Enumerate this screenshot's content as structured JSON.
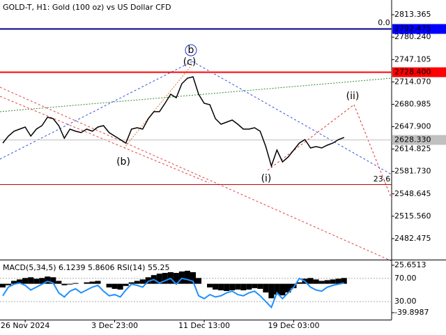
{
  "chart_data": [
    {
      "type": "line",
      "title": "GOLD-T, H1:  Gold (100 oz) vs US Dollar CFD",
      "color": "#000000",
      "categories": [
        null,
        null,
        null,
        null,
        "26 Nov 2024",
        null,
        null,
        null,
        null,
        null,
        null,
        null,
        null,
        null,
        null,
        null,
        null,
        null,
        null,
        null,
        "3 Dec 23:00",
        null,
        null,
        null,
        null,
        null,
        null,
        null,
        null,
        null,
        null,
        null,
        null,
        null,
        null,
        null,
        "11 Dec 13:00",
        null,
        null,
        null,
        null,
        null,
        null,
        null,
        null,
        null,
        null,
        null,
        null,
        null,
        null,
        null,
        "19 Dec 03:00",
        null,
        null,
        null,
        null,
        null,
        null,
        null,
        null,
        null,
        null,
        null,
        null,
        null,
        null,
        null,
        null,
        null
      ],
      "values": [
        2623.7,
        2634.0,
        2641.2,
        2644.3,
        2647.4,
        2634.0,
        2644.3,
        2649.5,
        2661.8,
        2659.8,
        2649.5,
        2630.9,
        2644.3,
        2641.2,
        2639.2,
        2644.3,
        2641.2,
        2647.4,
        2649.5,
        2639.2,
        2634.0,
        2628.8,
        2623.7,
        2644.3,
        2646.4,
        2644.3,
        2659.8,
        2670.1,
        2670.1,
        2682.5,
        2695.9,
        2690.7,
        2711.3,
        2719.6,
        2721.7,
        2695.9,
        2682.5,
        2680.4,
        2659.8,
        2651.5,
        2654.6,
        2657.7,
        2651.5,
        2644.3,
        2644.3,
        2646.4,
        2641.2,
        2618.5,
        2589.7,
        2613.4,
        2595.8,
        2603.1,
        2613.4,
        2623.7,
        2628.8,
        2616.5,
        2618.5,
        2616.5,
        2620.6,
        2623.7,
        2628.8,
        2631.9,
        null,
        null,
        null,
        null,
        null,
        null,
        null,
        null
      ],
      "ylim": [
        2451.45,
        2835.1
      ],
      "yticks": [
        2813.365,
        {
          "value": 2780.24,
          "label": "2780.240"
        },
        2747.105,
        {
          "value": 2714.07,
          "label": "2714.070"
        },
        2680.985,
        {
          "value": 2647.9,
          "label": "2647.900"
        },
        2614.825,
        {
          "value": 2581.73,
          "label": "2581.730"
        },
        2548.645,
        {
          "value": 2515.56,
          "label": "2515.560"
        },
        2482.475
      ],
      "levels": {
        "values": [
          2792.475,
          2728.4,
          2628.33,
          2562.9
        ],
        "value_labels": [
          "2792.475",
          "2728.400",
          "2628.330",
          null
        ],
        "colors": [
          "#00008b",
          "#ff0000",
          "#c0c0c0",
          "#c00000"
        ],
        "label_colors": [
          "#0000ff",
          "#ff0000",
          "#c0c0c0",
          null
        ]
      },
      "annotations": [
        {
          "text": "0.0",
          "color": "#c04040"
        },
        {
          "text": "b",
          "color": "#2030d0"
        },
        {
          "text": "(c)",
          "color": "#e07030"
        },
        {
          "text": "(b)",
          "color": "#e07030"
        },
        {
          "text": "(i)",
          "color": "#e03030"
        },
        {
          "text": "(ii)",
          "color": "#e03030"
        },
        {
          "text": "23.6",
          "color": "#c04040"
        }
      ]
    },
    {
      "type": "indicator",
      "title": "MACD(5,34,5) 6.1239 5.8606 RSI(14) 55.25",
      "series": [
        {
          "color": "#000000",
          "axis": "y2",
          "values": [
            -5,
            -2,
            4,
            6,
            8,
            9,
            7,
            8,
            10,
            9,
            4,
            -2,
            -1,
            1,
            0,
            2,
            3,
            4,
            0,
            -5,
            -7,
            -8,
            -3,
            2,
            4,
            6,
            9,
            12,
            14,
            15,
            16,
            15,
            17,
            18,
            16,
            8,
            0,
            -5,
            -8,
            -9,
            -10,
            -9,
            -8,
            -9,
            -8,
            -6,
            -7,
            -12,
            -20,
            -15,
            -16,
            -12,
            -6,
            2,
            7,
            8,
            6,
            4,
            5,
            6,
            7,
            8,
            null,
            null,
            null,
            null,
            null,
            null,
            null,
            null
          ]
        },
        {
          "color": "#1e90ff",
          "values": [
            40,
            55,
            60,
            62,
            58,
            50,
            55,
            60,
            65,
            62,
            45,
            38,
            48,
            52,
            45,
            50,
            55,
            58,
            48,
            40,
            42,
            38,
            50,
            60,
            58,
            55,
            65,
            68,
            62,
            66,
            70,
            60,
            70,
            68,
            65,
            40,
            35,
            42,
            38,
            40,
            45,
            48,
            42,
            40,
            45,
            48,
            40,
            30,
            20,
            45,
            35,
            45,
            55,
            70,
            65,
            55,
            50,
            48,
            55,
            58,
            60,
            62,
            null,
            null,
            null,
            null,
            null,
            null,
            null,
            null
          ]
        }
      ],
      "ylim": [
        0,
        100
      ],
      "yticks": [
        {
          "value": 70,
          "label": "70.00"
        },
        {
          "value": 30,
          "label": "30.00"
        }
      ],
      "y2lim": [
        -48.57,
        31.44
      ],
      "y2ticks": [
        25.6513,
        -39.8987
      ]
    }
  ]
}
